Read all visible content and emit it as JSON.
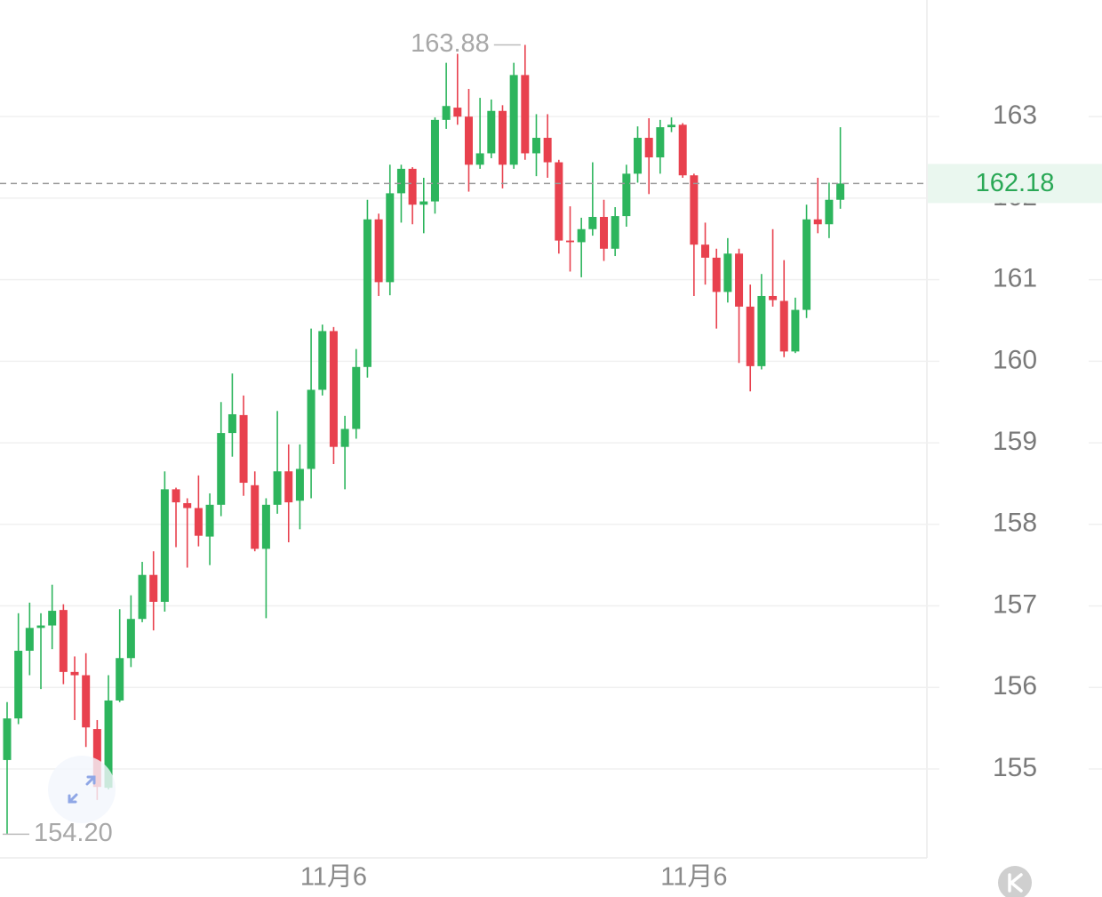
{
  "chart_data": {
    "type": "candlestick",
    "categories": [
      null,
      null,
      null,
      null,
      null,
      null,
      null,
      null,
      null,
      null,
      null,
      null,
      null,
      null,
      null,
      null,
      null,
      null,
      null,
      null,
      null,
      null,
      null,
      null,
      null,
      null,
      null,
      null,
      null,
      "11月6",
      null,
      null,
      null,
      null,
      null,
      null,
      null,
      null,
      null,
      null,
      null,
      null,
      null,
      null,
      null,
      null,
      null,
      null,
      null,
      null,
      null,
      null,
      null,
      null,
      null,
      null,
      null,
      null,
      null,
      null,
      null,
      "11月6",
      null,
      null,
      null,
      null,
      null,
      null,
      null,
      null,
      null,
      null,
      null,
      null,
      null
    ],
    "open": [
      155.11,
      155.62,
      156.45,
      156.73,
      156.76,
      156.95,
      156.19,
      156.15,
      155.49,
      154.77,
      155.84,
      156.36,
      156.84,
      157.38,
      157.05,
      158.43,
      158.26,
      158.2,
      157.85,
      158.24,
      159.12,
      159.34,
      158.48,
      157.7,
      158.24,
      158.65,
      158.29,
      158.68,
      159.65,
      160.37,
      158.95,
      159.17,
      159.93,
      161.74,
      160.97,
      162.06,
      162.36,
      161.92,
      161.96,
      162.96,
      163.11,
      163.0,
      162.41,
      162.55,
      163.07,
      162.41,
      163.51,
      162.55,
      162.74,
      162.44,
      161.48,
      161.46,
      161.62,
      161.77,
      161.38,
      161.78,
      162.3,
      162.74,
      162.5,
      162.87,
      162.9,
      162.28,
      161.43,
      161.27,
      160.85,
      161.32,
      160.67,
      159.94,
      160.8,
      160.74,
      160.12,
      160.63,
      161.74,
      161.68,
      161.98
    ],
    "high": [
      155.82,
      156.91,
      157.04,
      156.91,
      157.26,
      157.02,
      156.38,
      156.42,
      155.6,
      156.15,
      156.96,
      157.13,
      157.54,
      157.67,
      158.65,
      158.45,
      158.32,
      158.6,
      158.38,
      159.5,
      159.85,
      159.58,
      158.65,
      158.32,
      159.39,
      158.98,
      158.98,
      160.4,
      160.45,
      160.42,
      159.33,
      160.15,
      161.98,
      161.81,
      162.41,
      162.41,
      162.38,
      162.25,
      162.99,
      163.66,
      163.77,
      163.34,
      163.23,
      163.21,
      163.14,
      163.66,
      163.88,
      163.03,
      163.03,
      162.47,
      161.9,
      161.76,
      162.44,
      161.98,
      161.89,
      162.41,
      162.88,
      162.98,
      162.96,
      162.99,
      162.92,
      162.3,
      161.7,
      161.38,
      161.51,
      161.38,
      160.94,
      161.07,
      161.62,
      161.24,
      160.78,
      161.92,
      162.25,
      162.19,
      162.87
    ],
    "low": [
      154.2,
      155.55,
      156.15,
      155.98,
      156.47,
      156.04,
      155.6,
      155.27,
      154.62,
      154.75,
      155.82,
      156.25,
      156.8,
      156.7,
      156.93,
      157.72,
      157.47,
      157.73,
      157.5,
      158.1,
      158.83,
      158.35,
      157.67,
      156.85,
      158.13,
      157.78,
      157.94,
      158.32,
      159.58,
      158.74,
      158.43,
      159.05,
      159.8,
      160.8,
      160.81,
      161.7,
      161.68,
      161.57,
      161.81,
      162.85,
      162.9,
      162.08,
      162.36,
      162.49,
      162.12,
      162.36,
      162.47,
      162.27,
      162.25,
      161.32,
      161.1,
      161.03,
      161.54,
      161.23,
      161.29,
      161.65,
      162.19,
      162.05,
      162.3,
      162.81,
      162.25,
      160.8,
      160.94,
      160.4,
      160.72,
      159.98,
      159.63,
      159.9,
      160.67,
      160.05,
      160.1,
      160.53,
      161.57,
      161.51,
      161.87
    ],
    "close": [
      155.62,
      156.45,
      156.73,
      156.76,
      156.94,
      156.19,
      156.15,
      155.51,
      154.78,
      155.84,
      156.36,
      156.84,
      157.38,
      157.05,
      158.43,
      158.27,
      158.2,
      157.86,
      158.24,
      159.12,
      159.35,
      158.51,
      157.7,
      158.24,
      158.65,
      158.27,
      158.68,
      159.65,
      160.37,
      158.95,
      159.17,
      159.93,
      161.74,
      160.97,
      162.06,
      162.36,
      161.92,
      161.96,
      162.96,
      163.13,
      163.0,
      162.41,
      162.55,
      163.07,
      162.41,
      163.51,
      162.55,
      162.74,
      162.44,
      161.48,
      161.46,
      161.62,
      161.77,
      161.38,
      161.78,
      162.3,
      162.74,
      162.5,
      162.87,
      162.9,
      162.28,
      161.43,
      161.27,
      160.85,
      161.32,
      160.67,
      159.94,
      160.8,
      160.75,
      160.12,
      160.63,
      161.74,
      161.68,
      161.98,
      162.18
    ],
    "up_color": "#2db55d",
    "down_color": "#e8414e",
    "ylim": [
      153.91,
      164.43
    ],
    "yticks": [
      155,
      156,
      157,
      158,
      159,
      160,
      161,
      162,
      163
    ],
    "grid": true,
    "annotations": [
      {
        "text": "163.88",
        "value": 163.88,
        "index": 46
      },
      {
        "text": "154.20",
        "value": 154.2,
        "index": 0
      }
    ],
    "current_price": {
      "value": 162.18,
      "label": "162.18"
    }
  }
}
